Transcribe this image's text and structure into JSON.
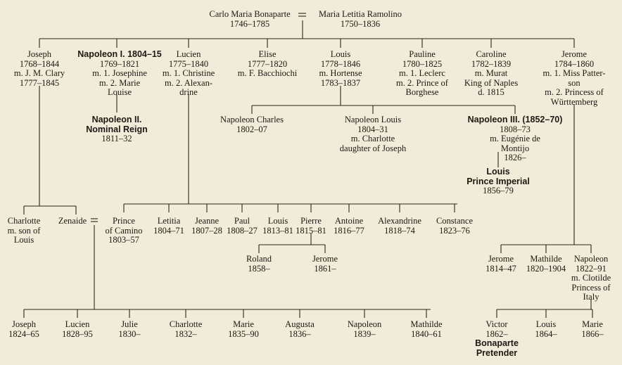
{
  "people": [
    {
      "id": "carlo",
      "lines": [
        {
          "t": "Carlo Maria Bonaparte"
        },
        {
          "t": "1746–1785"
        }
      ]
    },
    {
      "id": "letitia",
      "lines": [
        {
          "t": "Maria Letitia Ramolino"
        },
        {
          "t": "1750–1836"
        }
      ]
    },
    {
      "id": "joseph",
      "lines": [
        {
          "t": "Joseph"
        },
        {
          "t": "1768–1844"
        },
        {
          "t": "m. J. M. Clary"
        },
        {
          "t": "1777–1845"
        }
      ]
    },
    {
      "id": "napoleon1",
      "lines": [
        {
          "t": "Napoleon I.  1804–15",
          "bold": true
        },
        {
          "t": "1769–1821"
        },
        {
          "t": "m. 1. Josephine"
        },
        {
          "t": "m. 2. Marie"
        },
        {
          "t": "Louise"
        }
      ]
    },
    {
      "id": "lucien",
      "lines": [
        {
          "t": "Lucien"
        },
        {
          "t": "1775–1840"
        },
        {
          "t": "m. 1. Christine"
        },
        {
          "t": "m. 2. Alexan-"
        },
        {
          "t": "drine"
        }
      ]
    },
    {
      "id": "elise",
      "lines": [
        {
          "t": "Elise"
        },
        {
          "t": "1777–1820"
        },
        {
          "t": "m. F. Bacchiochi"
        }
      ]
    },
    {
      "id": "louis",
      "lines": [
        {
          "t": "Louis"
        },
        {
          "t": "1778–1846"
        },
        {
          "t": "m. Hortense"
        },
        {
          "t": "1783–1837"
        }
      ]
    },
    {
      "id": "pauline",
      "lines": [
        {
          "t": "Pauline"
        },
        {
          "t": "1780–1825"
        },
        {
          "t": "m. 1. Leclerc"
        },
        {
          "t": "m. 2. Prince of"
        },
        {
          "t": "Borghese"
        }
      ]
    },
    {
      "id": "caroline",
      "lines": [
        {
          "t": "Caroline"
        },
        {
          "t": "1782–1839"
        },
        {
          "t": "m. Murat"
        },
        {
          "t": "King of Naples"
        },
        {
          "t": "d. 1815"
        }
      ]
    },
    {
      "id": "jerome",
      "lines": [
        {
          "t": "Jerome"
        },
        {
          "t": "1784–1860"
        },
        {
          "t": "m. 1. Miss Patter-"
        },
        {
          "t": "son"
        },
        {
          "t": "m. 2. Princess of"
        },
        {
          "t": "Württemberg"
        }
      ]
    },
    {
      "id": "napoleon2",
      "lines": [
        {
          "t": "Napoleon II.",
          "bold": true
        },
        {
          "t": "Nominal Reign",
          "bold": true
        },
        {
          "t": "1811–32"
        }
      ]
    },
    {
      "id": "napcharles",
      "lines": [
        {
          "t": "Napoleon Charles"
        },
        {
          "t": "1802–07"
        }
      ]
    },
    {
      "id": "naplouis",
      "lines": [
        {
          "t": "Napoleon Louis"
        },
        {
          "t": "1804–31"
        },
        {
          "t": "m. Charlotte"
        },
        {
          "t": "daughter of Joseph"
        }
      ]
    },
    {
      "id": "napoleon3",
      "lines": [
        {
          "t": "Napoleon III.  (1852–70)",
          "bold": true
        },
        {
          "t": "1808–73"
        },
        {
          "t": "m. Eugénie de"
        },
        {
          "t": "Montijo"
        },
        {
          "t": "1826–"
        }
      ]
    },
    {
      "id": "louispi",
      "lines": [
        {
          "t": "Louis",
          "bold": true
        },
        {
          "t": "Prince Imperial",
          "bold": true
        },
        {
          "t": "1856–79"
        }
      ]
    },
    {
      "id": "charlotte_j",
      "lines": [
        {
          "t": "Charlotte"
        },
        {
          "t": "m. son of"
        },
        {
          "t": "Louis"
        }
      ]
    },
    {
      "id": "zenaide",
      "lines": [
        {
          "t": "Zenaide"
        }
      ]
    },
    {
      "id": "prince_camino",
      "lines": [
        {
          "t": "Prince"
        },
        {
          "t": "of Camino"
        },
        {
          "t": "1803–57"
        }
      ]
    },
    {
      "id": "letitia_l",
      "lines": [
        {
          "t": "Letitia"
        },
        {
          "t": "1804–71"
        }
      ]
    },
    {
      "id": "jeanne",
      "lines": [
        {
          "t": "Jeanne"
        },
        {
          "t": "1807–28"
        }
      ]
    },
    {
      "id": "paul",
      "lines": [
        {
          "t": "Paul"
        },
        {
          "t": "1808–27"
        }
      ]
    },
    {
      "id": "louis_l",
      "lines": [
        {
          "t": "Louis"
        },
        {
          "t": "1813–81"
        }
      ]
    },
    {
      "id": "pierre",
      "lines": [
        {
          "t": "Pierre"
        },
        {
          "t": "1815–81"
        }
      ]
    },
    {
      "id": "antoine",
      "lines": [
        {
          "t": "Antoine"
        },
        {
          "t": "1816–77"
        }
      ]
    },
    {
      "id": "alexandrine",
      "lines": [
        {
          "t": "Alexandrine"
        },
        {
          "t": "1818–74"
        }
      ]
    },
    {
      "id": "constance",
      "lines": [
        {
          "t": "Constance"
        },
        {
          "t": "1823–76"
        }
      ]
    },
    {
      "id": "roland",
      "lines": [
        {
          "t": "Roland"
        },
        {
          "t": "1858–"
        }
      ]
    },
    {
      "id": "jerome_p",
      "lines": [
        {
          "t": "Jerome"
        },
        {
          "t": "1861–"
        }
      ]
    },
    {
      "id": "jerome_j",
      "lines": [
        {
          "t": "Jerome"
        },
        {
          "t": "1814–47"
        }
      ]
    },
    {
      "id": "mathilde_j",
      "lines": [
        {
          "t": "Mathilde"
        },
        {
          "t": "1820–1904"
        }
      ]
    },
    {
      "id": "napoleon_j",
      "lines": [
        {
          "t": "Napoleon"
        },
        {
          "t": "1822–91"
        },
        {
          "t": "m. Clotilde"
        },
        {
          "t": "Princess of"
        },
        {
          "t": "Italy"
        }
      ]
    },
    {
      "id": "victor",
      "lines": [
        {
          "t": "Victor"
        },
        {
          "t": "1862–"
        },
        {
          "t": "Bonaparte",
          "bold": true
        },
        {
          "t": "Pretender",
          "bold": true
        }
      ]
    },
    {
      "id": "louis_n",
      "lines": [
        {
          "t": "Louis"
        },
        {
          "t": "1864–"
        }
      ]
    },
    {
      "id": "marie_n",
      "lines": [
        {
          "t": "Marie"
        },
        {
          "t": "1866–"
        }
      ]
    },
    {
      "id": "joseph_z",
      "lines": [
        {
          "t": "Joseph"
        },
        {
          "t": "1824–65"
        }
      ]
    },
    {
      "id": "lucien_z",
      "lines": [
        {
          "t": "Lucien"
        },
        {
          "t": "1828–95"
        }
      ]
    },
    {
      "id": "julie_z",
      "lines": [
        {
          "t": "Julie"
        },
        {
          "t": "1830–"
        }
      ]
    },
    {
      "id": "charlotte_z",
      "lines": [
        {
          "t": "Charlotte"
        },
        {
          "t": "1832–"
        }
      ]
    },
    {
      "id": "marie_z",
      "lines": [
        {
          "t": "Marie"
        },
        {
          "t": "1835–90"
        }
      ]
    },
    {
      "id": "augusta_z",
      "lines": [
        {
          "t": "Augusta"
        },
        {
          "t": "1836–"
        }
      ]
    },
    {
      "id": "napoleon_z",
      "lines": [
        {
          "t": "Napoleon"
        },
        {
          "t": "1839–"
        }
      ]
    },
    {
      "id": "mathilde_z",
      "lines": [
        {
          "t": "Mathilde"
        },
        {
          "t": "1840–61"
        }
      ]
    }
  ]
}
